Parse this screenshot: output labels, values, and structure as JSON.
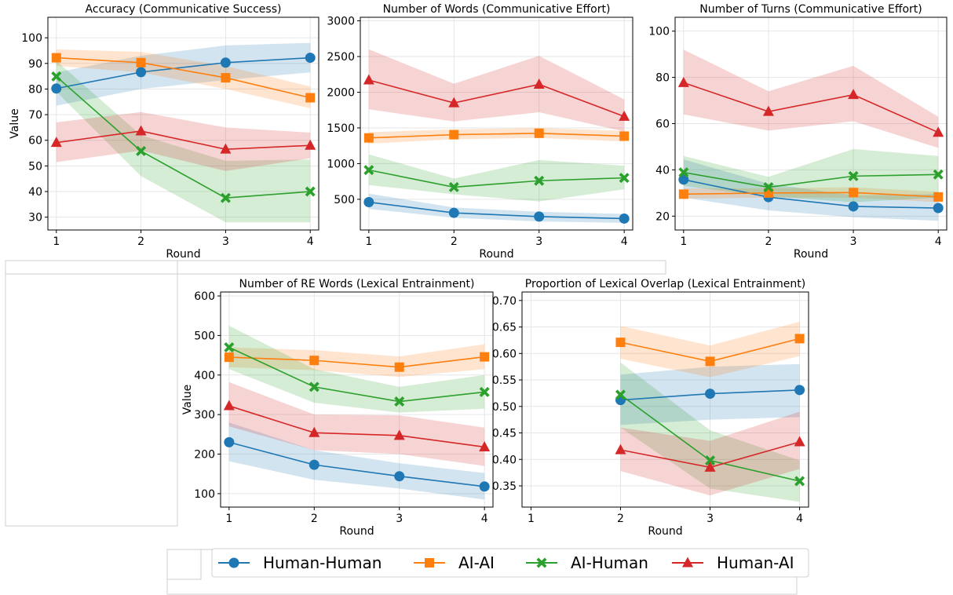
{
  "legend": {
    "placement": "bottom-center",
    "entries": [
      {
        "name": "Human-Human",
        "color": "#1f77b4",
        "marker": "circle"
      },
      {
        "name": "AI-AI",
        "color": "#ff7f0e",
        "marker": "square"
      },
      {
        "name": "AI-Human",
        "color": "#2ca02c",
        "marker": "x"
      },
      {
        "name": "Human-AI",
        "color": "#d62728",
        "marker": "triangle"
      }
    ]
  },
  "chart_data": [
    {
      "type": "line",
      "title": "Accuracy (Communicative Success)",
      "xlabel": "Round",
      "ylabel": "Value",
      "xlim": [
        0.9,
        4.1
      ],
      "ylim": [
        25,
        108
      ],
      "grid": true,
      "x": [
        1,
        2,
        3,
        4
      ],
      "xticks": [
        "1",
        "2",
        "3",
        "4"
      ],
      "yticks": [
        30,
        40,
        50,
        60,
        70,
        80,
        90,
        100
      ],
      "series": [
        {
          "name": "Human-Human",
          "x": [
            1,
            2,
            3,
            4
          ],
          "values": [
            80.2,
            86.6,
            90.3,
            92.2
          ],
          "lower": [
            73.5,
            80.0,
            83.5,
            86.5
          ],
          "upper": [
            86.5,
            93.0,
            97.0,
            98.0
          ]
        },
        {
          "name": "AI-AI",
          "x": [
            1,
            2,
            3,
            4
          ],
          "values": [
            92.2,
            90.3,
            84.4,
            76.6
          ],
          "lower": [
            89.0,
            86.5,
            80.0,
            72.5
          ],
          "upper": [
            95.5,
            94.5,
            89.0,
            81.0
          ]
        },
        {
          "name": "AI-Human",
          "x": [
            1,
            2,
            3,
            4
          ],
          "values": [
            84.9,
            55.8,
            37.5,
            40.0
          ],
          "lower": [
            79.0,
            46.0,
            28.0,
            28.0
          ],
          "upper": [
            91.0,
            62.0,
            52.0,
            52.5
          ]
        },
        {
          "name": "Human-AI",
          "x": [
            1,
            2,
            3,
            4
          ],
          "values": [
            59.1,
            63.6,
            56.5,
            58.0
          ],
          "lower": [
            51.5,
            56.0,
            48.0,
            53.0
          ],
          "upper": [
            67.0,
            71.0,
            65.0,
            63.0
          ]
        }
      ]
    },
    {
      "type": "line",
      "title": "Number of Words (Communicative Effort)",
      "xlabel": "Round",
      "ylabel": "",
      "xlim": [
        0.9,
        4.1
      ],
      "ylim": [
        70,
        3050
      ],
      "grid": true,
      "x": [
        1,
        2,
        3,
        4
      ],
      "xticks": [
        "1",
        "2",
        "3",
        "4"
      ],
      "yticks": [
        500,
        1000,
        1500,
        2000,
        2500,
        3000
      ],
      "series": [
        {
          "name": "Human-Human",
          "x": [
            1,
            2,
            3,
            4
          ],
          "values": [
            460,
            310,
            258,
            230
          ],
          "lower": [
            365,
            240,
            190,
            170
          ],
          "upper": [
            580,
            385,
            325,
            295
          ]
        },
        {
          "name": "AI-AI",
          "x": [
            1,
            2,
            3,
            4
          ],
          "values": [
            1360,
            1405,
            1425,
            1385
          ],
          "lower": [
            1280,
            1340,
            1360,
            1310
          ],
          "upper": [
            1440,
            1480,
            1500,
            1460
          ]
        },
        {
          "name": "AI-Human",
          "x": [
            1,
            2,
            3,
            4
          ],
          "values": [
            910,
            670,
            760,
            800
          ],
          "lower": [
            700,
            570,
            470,
            640
          ],
          "upper": [
            1130,
            790,
            1050,
            970
          ]
        },
        {
          "name": "Human-AI",
          "x": [
            1,
            2,
            3,
            4
          ],
          "values": [
            2170,
            1850,
            2110,
            1660
          ],
          "lower": [
            1760,
            1590,
            1720,
            1450
          ],
          "upper": [
            2600,
            2120,
            2510,
            1900
          ]
        }
      ]
    },
    {
      "type": "line",
      "title": "Number of Turns (Communicative Effort)",
      "xlabel": "Round",
      "ylabel": "",
      "xlim": [
        0.9,
        4.1
      ],
      "ylim": [
        14,
        106
      ],
      "grid": true,
      "x": [
        1,
        2,
        3,
        4
      ],
      "xticks": [
        "1",
        "2",
        "3",
        "4"
      ],
      "yticks": [
        20,
        40,
        60,
        80,
        100
      ],
      "series": [
        {
          "name": "Human-Human",
          "x": [
            1,
            2,
            3,
            4
          ],
          "values": [
            35.8,
            28.2,
            24.2,
            23.5
          ],
          "lower": [
            28.0,
            22.5,
            19.5,
            18.0
          ],
          "upper": [
            44.5,
            34.0,
            29.0,
            29.5
          ]
        },
        {
          "name": "AI-AI",
          "x": [
            1,
            2,
            3,
            4
          ],
          "values": [
            29.5,
            30.0,
            30.2,
            28.3
          ],
          "lower": [
            27.5,
            28.0,
            28.0,
            26.0
          ],
          "upper": [
            32.0,
            32.0,
            32.5,
            30.5
          ]
        },
        {
          "name": "AI-Human",
          "x": [
            1,
            2,
            3,
            4
          ],
          "values": [
            38.9,
            32.5,
            37.3,
            38.0
          ],
          "lower": [
            33.0,
            28.5,
            26.0,
            28.0
          ],
          "upper": [
            46.0,
            37.0,
            49.0,
            46.0
          ]
        },
        {
          "name": "Human-AI",
          "x": [
            1,
            2,
            3,
            4
          ],
          "values": [
            77.7,
            65.2,
            72.5,
            56.2
          ],
          "lower": [
            64.0,
            57.0,
            61.0,
            49.5
          ],
          "upper": [
            92.0,
            74.0,
            85.0,
            63.0
          ]
        }
      ]
    },
    {
      "type": "line",
      "title": "Number of RE Words (Lexical Entrainment)",
      "xlabel": "Round",
      "ylabel": "Value",
      "xlim": [
        0.9,
        4.1
      ],
      "ylim": [
        66,
        610
      ],
      "grid": true,
      "x": [
        1,
        2,
        3,
        4
      ],
      "xticks": [
        "1",
        "2",
        "3",
        "4"
      ],
      "yticks": [
        100,
        200,
        300,
        400,
        500,
        600
      ],
      "series": [
        {
          "name": "Human-Human",
          "x": [
            1,
            2,
            3,
            4
          ],
          "values": [
            230,
            173,
            144,
            118
          ],
          "lower": [
            182,
            135,
            113,
            85
          ],
          "upper": [
            280,
            210,
            177,
            152
          ]
        },
        {
          "name": "AI-AI",
          "x": [
            1,
            2,
            3,
            4
          ],
          "values": [
            445,
            437,
            420,
            446
          ],
          "lower": [
            420,
            412,
            395,
            415
          ],
          "upper": [
            470,
            463,
            447,
            478
          ]
        },
        {
          "name": "AI-Human",
          "x": [
            1,
            2,
            3,
            4
          ],
          "values": [
            470,
            370,
            333,
            357
          ],
          "lower": [
            415,
            330,
            305,
            315
          ],
          "upper": [
            525,
            415,
            370,
            400
          ]
        },
        {
          "name": "Human-AI",
          "x": [
            1,
            2,
            3,
            4
          ],
          "values": [
            322,
            254,
            247,
            218
          ],
          "lower": [
            270,
            210,
            200,
            170
          ],
          "upper": [
            382,
            300,
            298,
            267
          ]
        }
      ]
    },
    {
      "type": "line",
      "title": "Proportion of Lexical Overlap (Lexical Entrainment)",
      "xlabel": "Round",
      "ylabel": "",
      "xlim": [
        0.9,
        4.1
      ],
      "ylim": [
        0.31,
        0.716
      ],
      "grid": true,
      "x": [
        1,
        2,
        3,
        4
      ],
      "xticks": [
        "1",
        "2",
        "3",
        "4"
      ],
      "yticks": [
        0.35,
        0.4,
        0.45,
        0.5,
        0.55,
        0.6,
        0.65,
        0.7
      ],
      "yticklabels": [
        "0.35",
        "0.40",
        "0.45",
        "0.50",
        "0.55",
        "0.60",
        "0.65",
        "0.70"
      ],
      "series": [
        {
          "name": "Human-Human",
          "x": [
            2,
            3,
            4
          ],
          "values": [
            0.512,
            0.524,
            0.531
          ],
          "lower": [
            0.465,
            0.475,
            0.48
          ],
          "upper": [
            0.56,
            0.575,
            0.58
          ]
        },
        {
          "name": "AI-AI",
          "x": [
            2,
            3,
            4
          ],
          "values": [
            0.621,
            0.585,
            0.628
          ],
          "lower": [
            0.59,
            0.555,
            0.595
          ],
          "upper": [
            0.652,
            0.615,
            0.66
          ]
        },
        {
          "name": "AI-Human",
          "x": [
            2,
            3,
            4
          ],
          "values": [
            0.522,
            0.398,
            0.359
          ],
          "lower": [
            0.46,
            0.345,
            0.32
          ],
          "upper": [
            0.583,
            0.455,
            0.398
          ]
        },
        {
          "name": "Human-AI",
          "x": [
            2,
            3,
            4
          ],
          "values": [
            0.418,
            0.385,
            0.433
          ],
          "lower": [
            0.378,
            0.332,
            0.382
          ],
          "upper": [
            0.46,
            0.435,
            0.49
          ]
        }
      ]
    }
  ]
}
